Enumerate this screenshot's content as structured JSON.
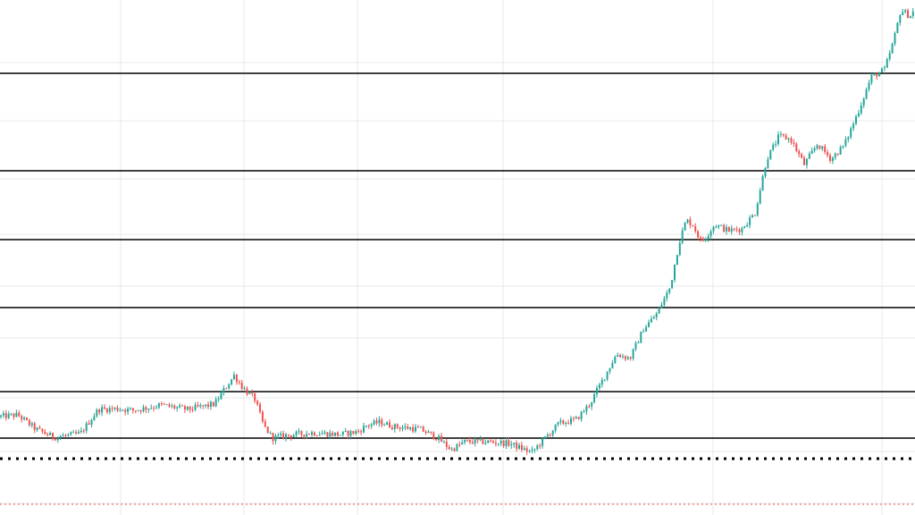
{
  "chart_data": {
    "type": "candlestick",
    "title": "",
    "xlabel": "",
    "ylabel": "",
    "ylim": [
      0,
      576
    ],
    "grid": true,
    "legend": "none",
    "colors": {
      "up": "#26a69a",
      "down": "#ef5350",
      "grid": "#e9e9e9",
      "level_line": "#000000",
      "dotted_level": "#000000",
      "red_dotted_level": "#ef5350",
      "background": "#ffffff"
    },
    "horizontal_levels": [
      {
        "kind": "solid",
        "value": 494
      },
      {
        "kind": "solid",
        "value": 385
      },
      {
        "kind": "solid",
        "value": 308
      },
      {
        "kind": "solid",
        "value": 232
      },
      {
        "kind": "solid",
        "value": 138
      },
      {
        "kind": "solid",
        "value": 86
      },
      {
        "kind": "dotted",
        "value": 63
      },
      {
        "kind": "red-dotted",
        "value": 12
      }
    ],
    "price_path": [
      [
        0,
        110
      ],
      [
        20,
        112
      ],
      [
        40,
        96
      ],
      [
        60,
        87
      ],
      [
        90,
        91
      ],
      [
        110,
        118
      ],
      [
        130,
        119
      ],
      [
        150,
        117
      ],
      [
        180,
        123
      ],
      [
        210,
        118
      ],
      [
        240,
        124
      ],
      [
        252,
        142
      ],
      [
        262,
        156
      ],
      [
        272,
        142
      ],
      [
        285,
        130
      ],
      [
        295,
        100
      ],
      [
        305,
        86
      ],
      [
        320,
        89
      ],
      [
        350,
        92
      ],
      [
        380,
        90
      ],
      [
        400,
        93
      ],
      [
        410,
        100
      ],
      [
        425,
        104
      ],
      [
        440,
        99
      ],
      [
        470,
        96
      ],
      [
        490,
        86
      ],
      [
        505,
        73
      ],
      [
        520,
        82
      ],
      [
        545,
        82
      ],
      [
        570,
        80
      ],
      [
        595,
        70
      ],
      [
        610,
        86
      ],
      [
        625,
        102
      ],
      [
        645,
        107
      ],
      [
        660,
        124
      ],
      [
        675,
        152
      ],
      [
        690,
        180
      ],
      [
        705,
        175
      ],
      [
        720,
        208
      ],
      [
        735,
        225
      ],
      [
        750,
        255
      ],
      [
        760,
        305
      ],
      [
        768,
        330
      ],
      [
        775,
        325
      ],
      [
        785,
        305
      ],
      [
        800,
        325
      ],
      [
        815,
        318
      ],
      [
        830,
        320
      ],
      [
        845,
        338
      ],
      [
        858,
        398
      ],
      [
        872,
        424
      ],
      [
        885,
        420
      ],
      [
        900,
        392
      ],
      [
        915,
        415
      ],
      [
        930,
        398
      ],
      [
        945,
        414
      ],
      [
        960,
        450
      ],
      [
        975,
        490
      ],
      [
        990,
        498
      ],
      [
        1000,
        530
      ],
      [
        1008,
        565
      ],
      [
        1018,
        558
      ],
      [
        1024,
        565
      ]
    ]
  }
}
